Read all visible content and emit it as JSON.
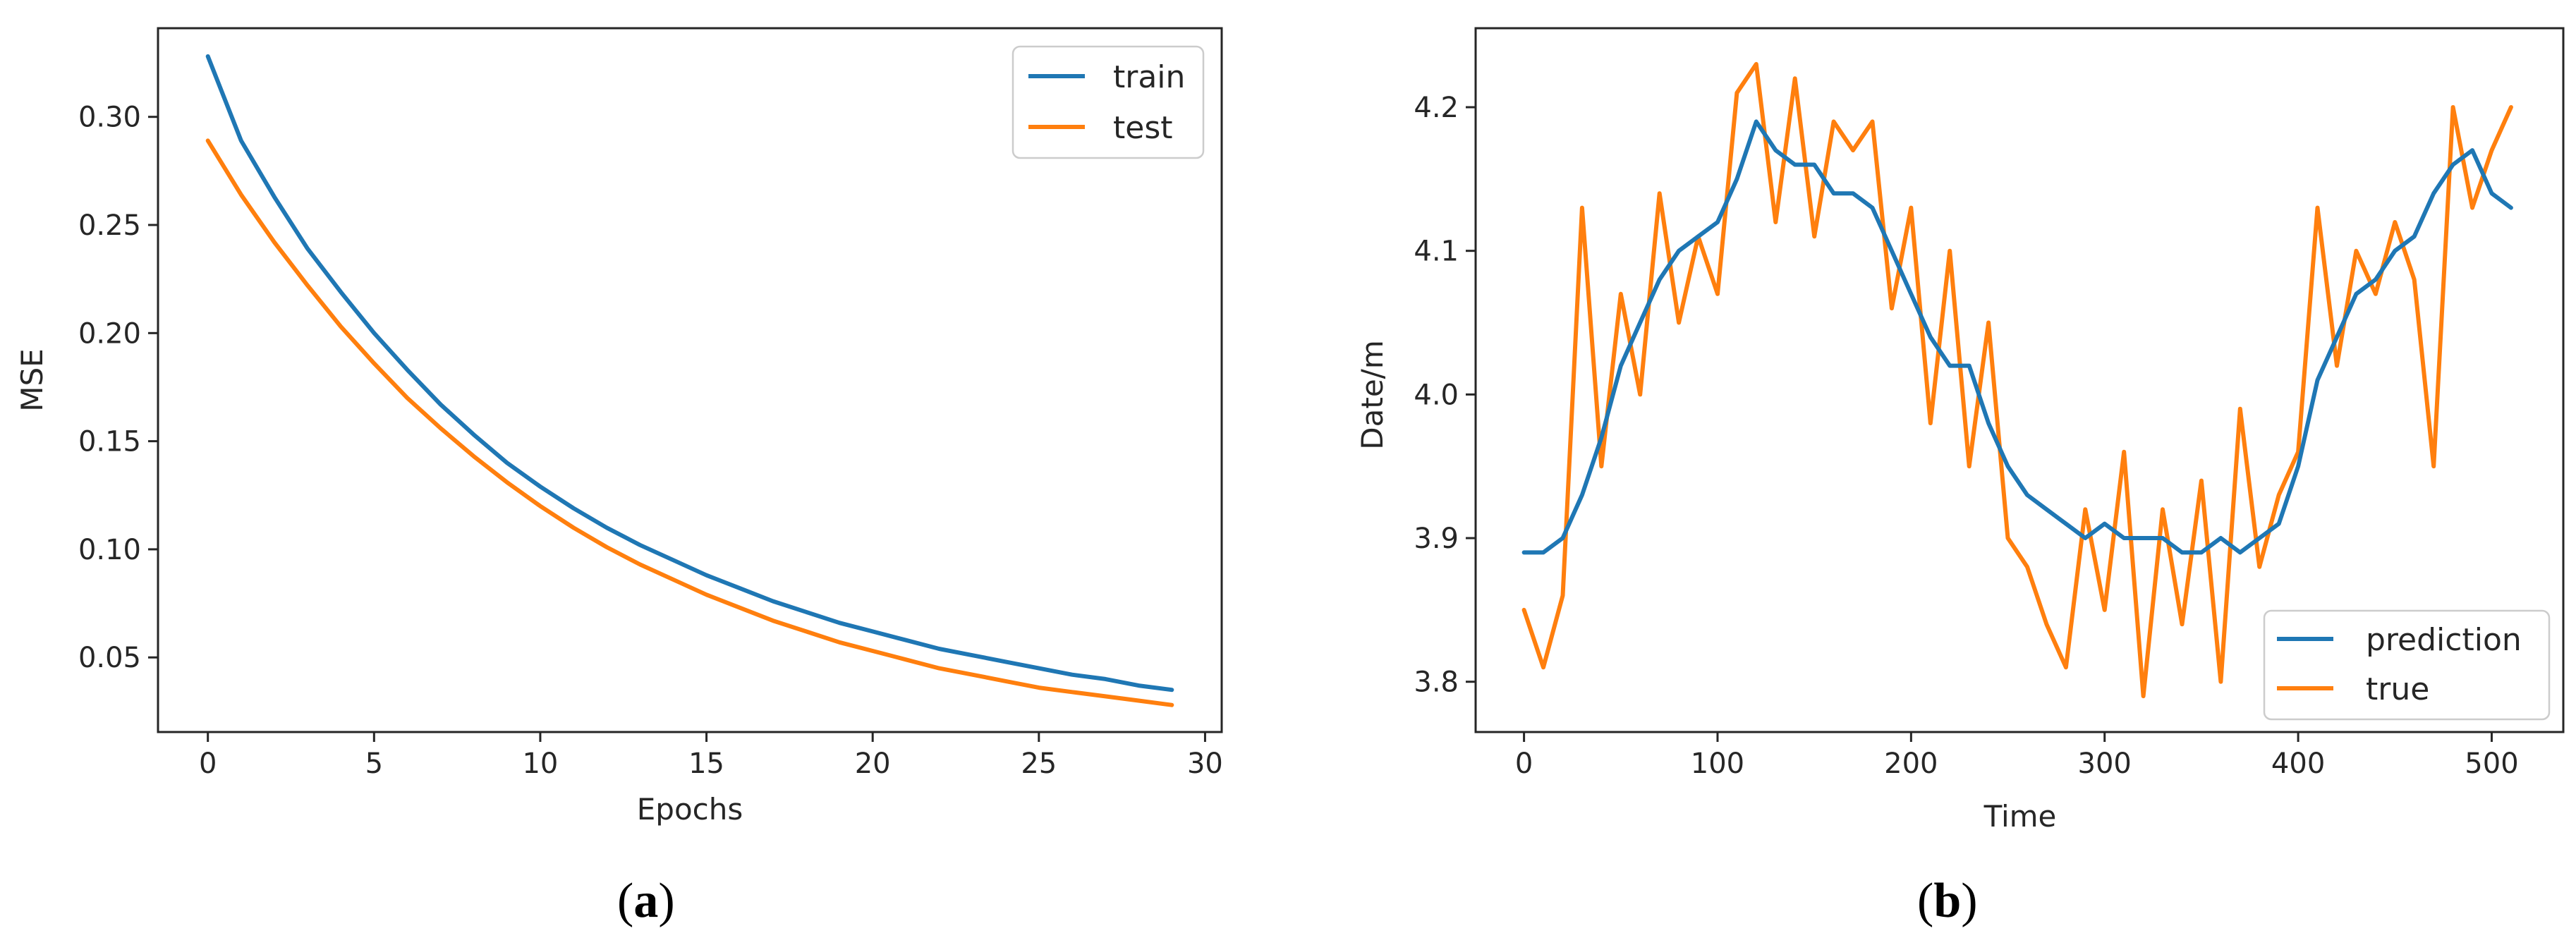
{
  "colors": {
    "blue": "#1f77b4",
    "orange": "#ff7f0e",
    "axis": "#262626",
    "legend_border": "#cccccc"
  },
  "panel_a": {
    "caption": {
      "open": "(",
      "letter": "a",
      "close": ")"
    },
    "legend": [
      "train",
      "test"
    ]
  },
  "panel_b": {
    "caption": {
      "open": "(",
      "letter": "b",
      "close": ")"
    },
    "legend": [
      "prediction",
      "true"
    ]
  },
  "chart_data": [
    {
      "type": "line",
      "xlabel": "Epochs",
      "ylabel": "MSE",
      "xlim": [
        -1.5,
        30.5
      ],
      "ylim": [
        0.0155,
        0.341
      ],
      "xticks": [
        0,
        5,
        10,
        15,
        20,
        25,
        30
      ],
      "xtick_labels": [
        "0",
        "5",
        "10",
        "15",
        "20",
        "25",
        "30"
      ],
      "yticks": [
        0.05,
        0.1,
        0.15,
        0.2,
        0.25,
        0.3
      ],
      "ytick_labels": [
        "0.05",
        "0.10",
        "0.15",
        "0.20",
        "0.25",
        "0.30"
      ],
      "legend_position": "top-right",
      "grid": false,
      "x": [
        0,
        1,
        2,
        3,
        4,
        5,
        6,
        7,
        8,
        9,
        10,
        11,
        12,
        13,
        14,
        15,
        16,
        17,
        18,
        19,
        20,
        21,
        22,
        23,
        24,
        25,
        26,
        27,
        28,
        29
      ],
      "series": [
        {
          "name": "train",
          "color": "blue",
          "values": [
            0.328,
            0.289,
            0.263,
            0.239,
            0.219,
            0.2,
            0.183,
            0.167,
            0.153,
            0.14,
            0.129,
            0.119,
            0.11,
            0.102,
            0.095,
            0.088,
            0.082,
            0.076,
            0.071,
            0.066,
            0.062,
            0.058,
            0.054,
            0.051,
            0.048,
            0.045,
            0.042,
            0.04,
            0.037,
            0.035
          ]
        },
        {
          "name": "test",
          "color": "orange",
          "values": [
            0.289,
            0.264,
            0.242,
            0.222,
            0.203,
            0.186,
            0.17,
            0.156,
            0.143,
            0.131,
            0.12,
            0.11,
            0.101,
            0.093,
            0.086,
            0.079,
            0.073,
            0.067,
            0.062,
            0.057,
            0.053,
            0.049,
            0.045,
            0.042,
            0.039,
            0.036,
            0.034,
            0.032,
            0.03,
            0.028
          ]
        }
      ]
    },
    {
      "type": "line",
      "xlabel": "Time",
      "ylabel": "Date/m",
      "xlim": [
        -25,
        537
      ],
      "ylim": [
        3.765,
        4.255
      ],
      "xticks": [
        0,
        100,
        200,
        300,
        400,
        500
      ],
      "xtick_labels": [
        "0",
        "100",
        "200",
        "300",
        "400",
        "500"
      ],
      "yticks": [
        3.8,
        3.9,
        4.0,
        4.1,
        4.2
      ],
      "ytick_labels": [
        "3.8",
        "3.9",
        "4.0",
        "4.1",
        "4.2"
      ],
      "legend_position": "bottom-right",
      "grid": false,
      "x": [
        0,
        10,
        20,
        30,
        40,
        50,
        60,
        70,
        80,
        90,
        100,
        110,
        120,
        130,
        140,
        150,
        160,
        170,
        180,
        190,
        200,
        210,
        220,
        230,
        240,
        250,
        260,
        270,
        280,
        290,
        300,
        310,
        320,
        330,
        340,
        350,
        360,
        370,
        380,
        390,
        400,
        410,
        420,
        430,
        440,
        450,
        460,
        470,
        480,
        490,
        500,
        510
      ],
      "series": [
        {
          "name": "prediction",
          "color": "blue",
          "values": [
            3.89,
            3.89,
            3.9,
            3.93,
            3.97,
            4.02,
            4.05,
            4.08,
            4.1,
            4.11,
            4.12,
            4.15,
            4.19,
            4.17,
            4.16,
            4.16,
            4.14,
            4.14,
            4.13,
            4.1,
            4.07,
            4.04,
            4.02,
            4.02,
            3.98,
            3.95,
            3.93,
            3.92,
            3.91,
            3.9,
            3.91,
            3.9,
            3.9,
            3.9,
            3.89,
            3.89,
            3.9,
            3.89,
            3.9,
            3.91,
            3.95,
            4.01,
            4.04,
            4.07,
            4.08,
            4.1,
            4.11,
            4.14,
            4.16,
            4.17,
            4.14,
            4.13
          ]
        },
        {
          "name": "true",
          "color": "orange",
          "values": [
            3.85,
            3.81,
            3.86,
            4.13,
            3.95,
            4.07,
            4.0,
            4.14,
            4.05,
            4.11,
            4.07,
            4.21,
            4.23,
            4.12,
            4.22,
            4.11,
            4.19,
            4.17,
            4.19,
            4.06,
            4.13,
            3.98,
            4.1,
            3.95,
            4.05,
            3.9,
            3.88,
            3.84,
            3.81,
            3.92,
            3.85,
            3.96,
            3.79,
            3.92,
            3.84,
            3.94,
            3.8,
            3.99,
            3.88,
            3.93,
            3.96,
            4.13,
            4.02,
            4.1,
            4.07,
            4.12,
            4.08,
            3.95,
            4.2,
            4.13,
            4.17,
            4.2
          ]
        }
      ]
    }
  ]
}
